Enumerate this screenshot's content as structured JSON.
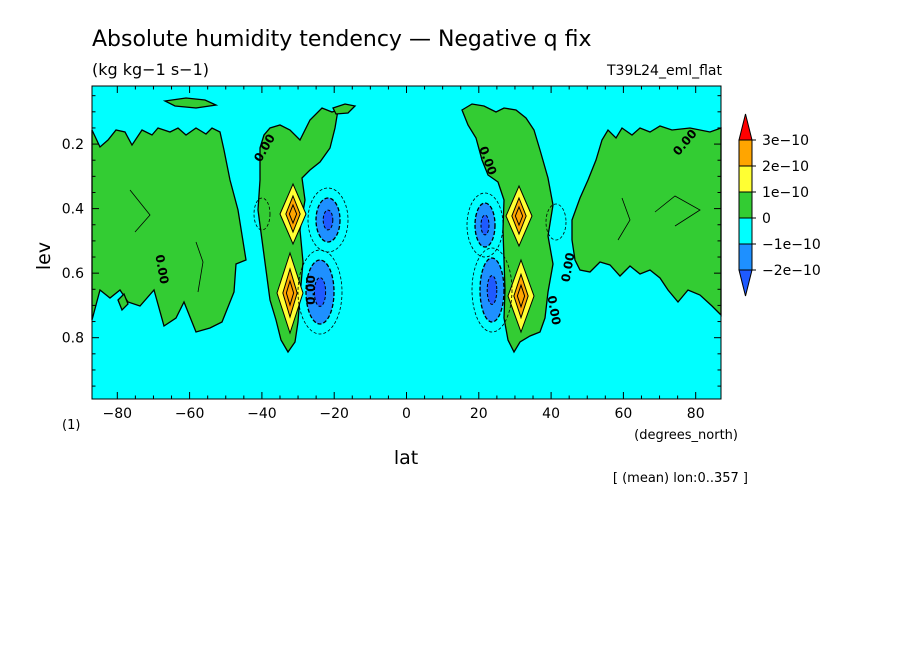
{
  "chart_data": {
    "type": "heatmap",
    "title": "Absolute humidity tendency — Negative q fix",
    "units": "(kg kg−1 s−1)",
    "experiment": "T39L24_eml_flat",
    "xlabel": "lat",
    "xunits": "(degrees_north)",
    "ylabel": "lev",
    "yunits": "(1)",
    "footnote": "[ (mean) lon:0..357 ]",
    "xlim": [
      -87,
      87
    ],
    "ylim": [
      0.99,
      0.02
    ],
    "xticks": [
      -80,
      -60,
      -40,
      -20,
      0,
      20,
      40,
      60,
      80
    ],
    "xtick_labels": [
      "−80",
      "−60",
      "−40",
      "−20",
      "0",
      "20",
      "40",
      "60",
      "80"
    ],
    "yticks": [
      0.2,
      0.4,
      0.6,
      0.8
    ],
    "ytick_labels": [
      "0.2",
      "0.4",
      "0.6",
      "0.8"
    ],
    "contour_label": "0.00",
    "colorbar": {
      "labels": [
        "3e−10",
        "2e−10",
        "1e−10",
        "0",
        "−1e−10",
        "−2e−10"
      ],
      "colors": [
        "#ff0000",
        "#ffa500",
        "#ffff33",
        "#33cc33",
        "#00ffff",
        "#1e90ff",
        "#1e5aff"
      ]
    },
    "field_colors": {
      "background": "#00ffff",
      "positive_low": "#33cc33",
      "positive_mid": "#ffff33",
      "positive_high": "#ffa500",
      "negative_low": "#1e90ff",
      "negative_high": "#1e5aff"
    }
  }
}
